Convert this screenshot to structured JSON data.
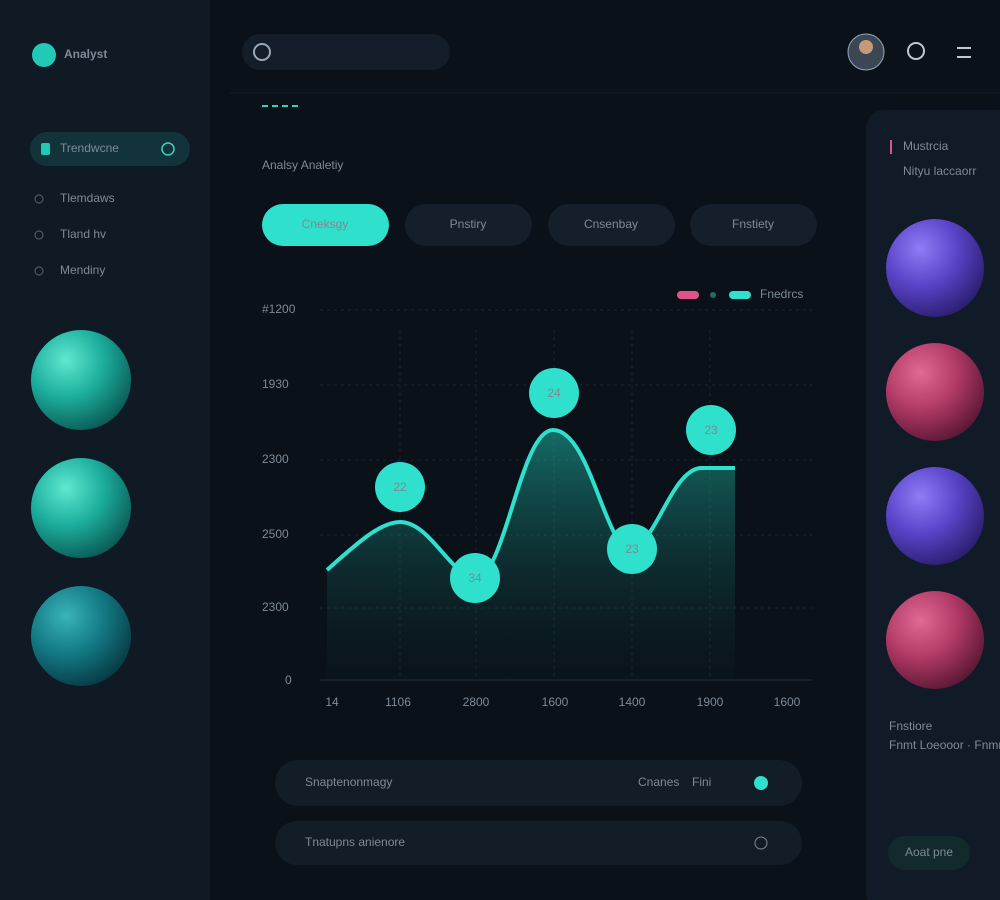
{
  "brand": "Analyst",
  "nav": [
    "Trendwcne",
    "Tlemdaws",
    "Tland hv",
    "Mendiny"
  ],
  "title": "Analsy Analetiy",
  "tabs": [
    "Cneksgy",
    "Pnstiry",
    "Cnsenbay",
    "Fnstiety"
  ],
  "legend": "Fnedrcs",
  "chart": {
    "y_labels": [
      "#1200",
      "1930",
      "2300",
      "2500",
      "2300",
      "0"
    ],
    "x_labels": [
      "14",
      "1106",
      "2800",
      "1600",
      "1400",
      "1900",
      "1600"
    ],
    "point_labels": [
      "22",
      "34",
      "24",
      "23",
      "23"
    ]
  },
  "rows": [
    {
      "title": "Snaptenonmagy",
      "meta": [
        "Cnanes",
        "Fini"
      ]
    },
    {
      "title": "Tnatupns anienore"
    }
  ],
  "side_panel": {
    "title": "Mustrcia",
    "subtitle": "Nityu laccaorr",
    "caption": "Fnstiore",
    "caption_sub": "Fnmt Loeooor · Fnmr",
    "button": "Aoat pne"
  }
}
